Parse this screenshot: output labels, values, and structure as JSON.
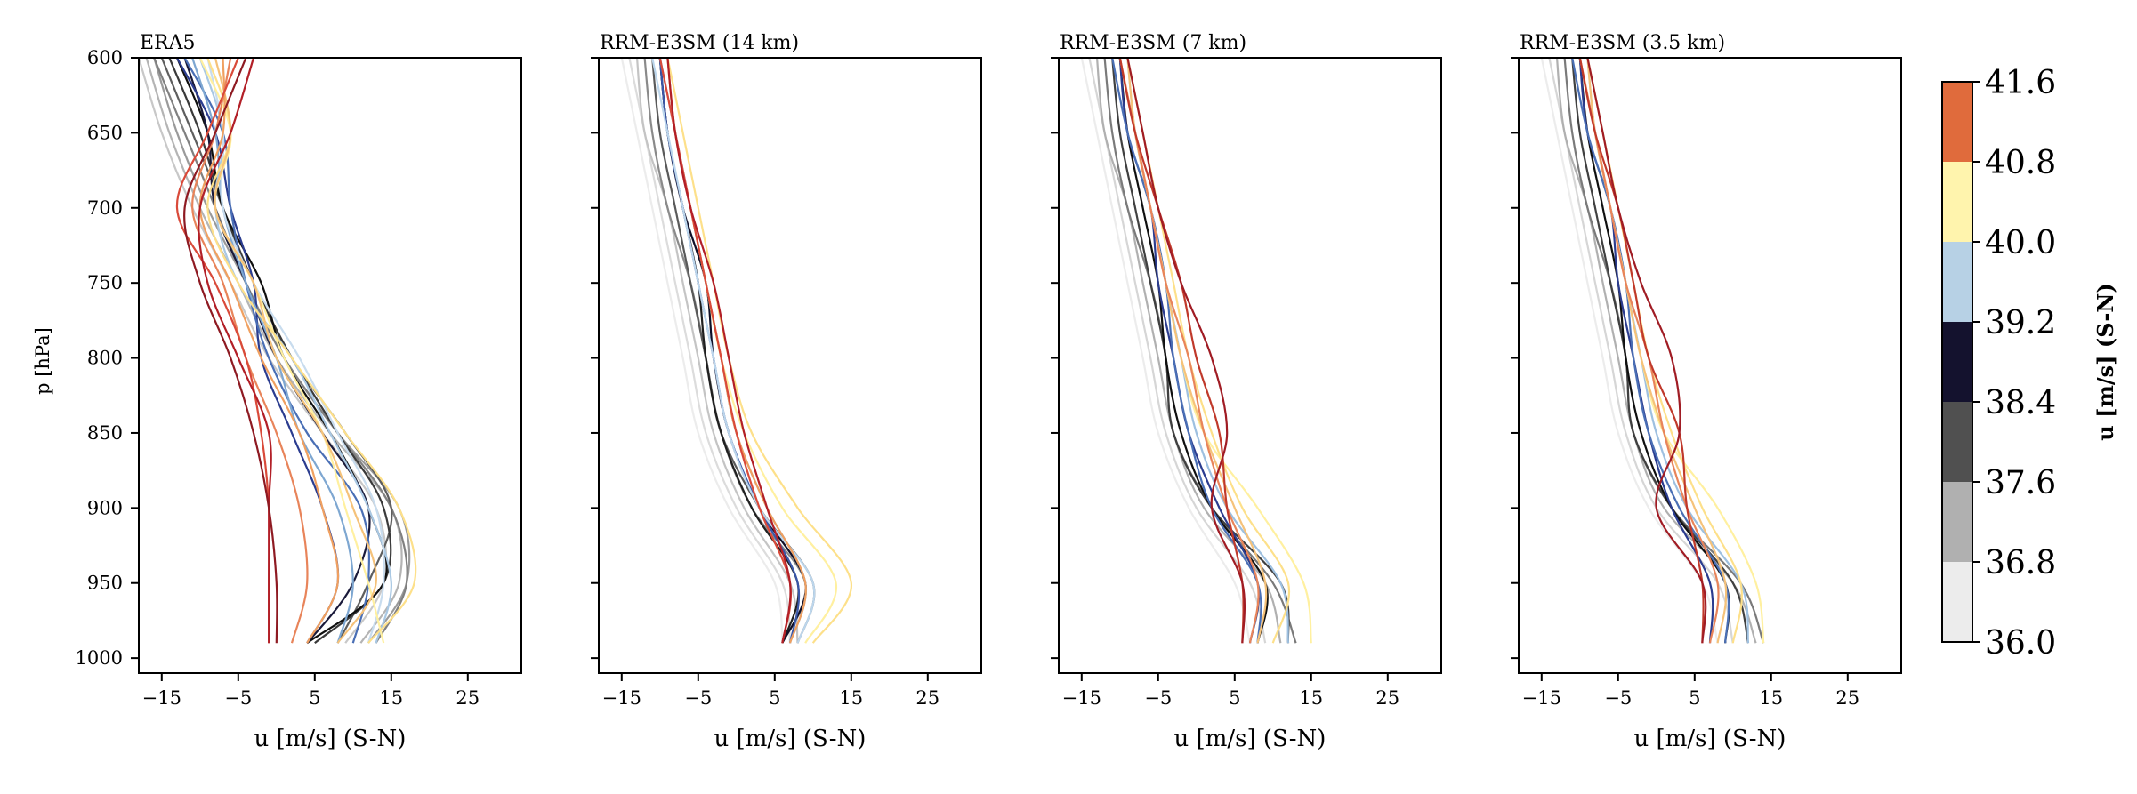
{
  "chart_data": [
    {
      "type": "line",
      "title": "ERA5",
      "xlabel": "u [m/s] (S-N)",
      "ylabel": "p [hPa]",
      "xlim": [
        -18,
        32
      ],
      "ylim": [
        1010,
        600
      ],
      "xticks": [
        -15,
        -5,
        5,
        15,
        25
      ],
      "yticks": [
        600,
        650,
        700,
        750,
        800,
        850,
        900,
        950,
        1000
      ],
      "y_levels": [
        600,
        650,
        700,
        750,
        800,
        850,
        900,
        950,
        990
      ],
      "series": [
        {
          "color": "#c8c8c8",
          "values": [
            -18,
            -15,
            -11,
            -6,
            -1,
            6,
            13,
            14,
            9
          ]
        },
        {
          "color": "#b4b4b4",
          "values": [
            -17,
            -14,
            -10,
            -5,
            0,
            7,
            15,
            16,
            11
          ]
        },
        {
          "color": "#9a9a9a",
          "values": [
            -16,
            -13,
            -9,
            -4,
            1,
            8,
            16,
            17,
            12
          ]
        },
        {
          "color": "#808080",
          "values": [
            -16,
            -12,
            -8,
            -4,
            1,
            8,
            15,
            17,
            13
          ]
        },
        {
          "color": "#5e5e5e",
          "values": [
            -15,
            -11,
            -7,
            -3,
            2,
            9,
            15,
            12,
            8
          ]
        },
        {
          "color": "#3a3a3a",
          "values": [
            -14,
            -10,
            -7,
            -3,
            2,
            8,
            14,
            14,
            5
          ]
        },
        {
          "color": "#101010",
          "values": [
            -13,
            -9,
            -7,
            -2,
            1,
            7,
            12,
            14,
            4
          ]
        },
        {
          "color": "#1a1a3a",
          "values": [
            -12,
            -9,
            -8,
            -4,
            0,
            6,
            12,
            10,
            4
          ]
        },
        {
          "color": "#2b3c8f",
          "values": [
            -13,
            -8,
            -6,
            -3,
            -2,
            2,
            6,
            8,
            4
          ]
        },
        {
          "color": "#4a6fb5",
          "values": [
            -12,
            -7,
            -6,
            -4,
            -1,
            4,
            11,
            12,
            10
          ]
        },
        {
          "color": "#7ea7d1",
          "values": [
            -11,
            -8,
            -7,
            -4,
            0,
            3,
            8,
            10,
            8
          ]
        },
        {
          "color": "#a9c8e3",
          "values": [
            -10,
            -7,
            -8,
            -5,
            2,
            7,
            12,
            15,
            13
          ]
        },
        {
          "color": "#c8dcee",
          "values": [
            -9,
            -7,
            -7,
            -3,
            3,
            8,
            13,
            14,
            12
          ]
        },
        {
          "color": "#fff0a0",
          "values": [
            -10,
            -6,
            -8,
            -3,
            1,
            6,
            9,
            12,
            14
          ]
        },
        {
          "color": "#fde08a",
          "values": [
            -9,
            -6,
            -9,
            -5,
            2,
            9,
            16,
            18,
            12
          ]
        },
        {
          "color": "#f5c27a",
          "values": [
            -8,
            -6,
            -8,
            -3,
            0,
            6,
            10,
            13,
            8
          ]
        },
        {
          "color": "#f0a060",
          "values": [
            -7,
            -7,
            -10,
            -6,
            -2,
            3,
            6,
            8,
            4
          ]
        },
        {
          "color": "#e8845a",
          "values": [
            -6,
            -8,
            -11,
            -7,
            -4,
            0,
            3,
            4,
            2
          ]
        },
        {
          "color": "#d94a3a",
          "values": [
            -5,
            -9,
            -13,
            -8,
            -4,
            -2,
            -1,
            -1,
            -1
          ]
        },
        {
          "color": "#b21f27",
          "values": [
            -3,
            -6,
            -10,
            -9,
            -5,
            -1,
            -1,
            -1,
            -1
          ]
        },
        {
          "color": "#8e1a22",
          "values": [
            -4,
            -8,
            -12,
            -10,
            -6,
            -3,
            -1,
            0,
            0
          ]
        }
      ]
    },
    {
      "type": "line",
      "title": "RRM-E3SM (14 km)",
      "xlabel": "u [m/s] (S-N)",
      "xlim": [
        -18,
        32
      ],
      "ylim": [
        1010,
        600
      ],
      "xticks": [
        -15,
        -5,
        5,
        15,
        25
      ],
      "yticks": [
        600,
        650,
        700,
        750,
        800,
        850,
        900,
        950,
        1000
      ],
      "y_levels": [
        600,
        650,
        700,
        750,
        800,
        850,
        900,
        950,
        990
      ],
      "series": [
        {
          "color": "#ececec",
          "values": [
            -15,
            -13,
            -11,
            -9,
            -7,
            -5,
            -1,
            5,
            6
          ]
        },
        {
          "color": "#dcdcdc",
          "values": [
            -14,
            -12,
            -10,
            -8,
            -6,
            -4,
            0,
            6,
            7
          ]
        },
        {
          "color": "#c4c4c4",
          "values": [
            -13,
            -12,
            -9,
            -7,
            -5,
            -3,
            1,
            7,
            8
          ]
        },
        {
          "color": "#8a8a8a",
          "values": [
            -12,
            -11,
            -9,
            -6,
            -4,
            -2,
            2,
            9,
            6
          ]
        },
        {
          "color": "#5a5a5a",
          "values": [
            -11,
            -10,
            -8,
            -6,
            -4,
            -2,
            3,
            10,
            8
          ]
        },
        {
          "color": "#202020",
          "values": [
            -10,
            -9,
            -7,
            -5,
            -4,
            -2,
            2,
            8,
            6
          ]
        },
        {
          "color": "#101028",
          "values": [
            -10,
            -9,
            -7,
            -4,
            -3,
            -1,
            3,
            9,
            6
          ]
        },
        {
          "color": "#3a57a8",
          "values": [
            -10,
            -9,
            -7,
            -5,
            -3,
            -1,
            3,
            8,
            7
          ]
        },
        {
          "color": "#7ea7d1",
          "values": [
            -10,
            -8,
            -6,
            -4,
            -2,
            0,
            4,
            9,
            7
          ]
        },
        {
          "color": "#bcd6ec",
          "values": [
            -11,
            -9,
            -7,
            -5,
            -3,
            -1,
            3,
            10,
            8
          ]
        },
        {
          "color": "#fff0a0",
          "values": [
            -9,
            -8,
            -6,
            -4,
            -2,
            1,
            6,
            13,
            9
          ]
        },
        {
          "color": "#fde08a",
          "values": [
            -9,
            -7,
            -5,
            -3,
            -1,
            2,
            8,
            15,
            10
          ]
        },
        {
          "color": "#f0a060",
          "values": [
            -9,
            -8,
            -6,
            -4,
            -2,
            0,
            4,
            9,
            7
          ]
        },
        {
          "color": "#d94a3a",
          "values": [
            -10,
            -8,
            -6,
            -4,
            -2,
            0,
            3,
            7,
            6
          ]
        },
        {
          "color": "#b21f27",
          "values": [
            -9,
            -8,
            -6,
            -3,
            -1,
            1,
            4,
            7,
            6
          ]
        }
      ]
    },
    {
      "type": "line",
      "title": "RRM-E3SM (7 km)",
      "xlabel": "u [m/s] (S-N)",
      "xlim": [
        -18,
        32
      ],
      "ylim": [
        1010,
        600
      ],
      "xticks": [
        -15,
        -5,
        5,
        15,
        25
      ],
      "yticks": [
        600,
        650,
        700,
        750,
        800,
        850,
        900,
        950,
        1000
      ],
      "y_levels": [
        600,
        650,
        700,
        750,
        800,
        850,
        900,
        950,
        990
      ],
      "series": [
        {
          "color": "#ececec",
          "values": [
            -15,
            -13,
            -11,
            -9,
            -7,
            -5,
            -1,
            5,
            7
          ]
        },
        {
          "color": "#d6d6d6",
          "values": [
            -14,
            -12,
            -10,
            -8,
            -6,
            -4,
            0,
            7,
            9
          ]
        },
        {
          "color": "#b0b0b0",
          "values": [
            -13,
            -12,
            -9,
            -7,
            -5,
            -3,
            1,
            9,
            11
          ]
        },
        {
          "color": "#7a7a7a",
          "values": [
            -12,
            -11,
            -9,
            -6,
            -4,
            -3,
            2,
            10,
            13
          ]
        },
        {
          "color": "#404040",
          "values": [
            -11,
            -10,
            -8,
            -6,
            -4,
            -3,
            2,
            11,
            12
          ]
        },
        {
          "color": "#101010",
          "values": [
            -10,
            -9,
            -7,
            -5,
            -4,
            -2,
            2,
            9,
            8
          ]
        },
        {
          "color": "#2b3c8f",
          "values": [
            -10,
            -9,
            -6,
            -5,
            -3,
            -1,
            3,
            8,
            7
          ]
        },
        {
          "color": "#4a6fb5",
          "values": [
            -11,
            -9,
            -6,
            -4,
            -3,
            -1,
            2,
            8,
            8
          ]
        },
        {
          "color": "#9ec0e0",
          "values": [
            -9,
            -8,
            -6,
            -4,
            -2,
            0,
            4,
            11,
            12
          ]
        },
        {
          "color": "#fff0a0",
          "values": [
            -10,
            -8,
            -6,
            -4,
            -2,
            1,
            8,
            14,
            15
          ]
        },
        {
          "color": "#fde08a",
          "values": [
            -9,
            -7,
            -5,
            -3,
            -1,
            2,
            6,
            12,
            10
          ]
        },
        {
          "color": "#f5c27a",
          "values": [
            -9,
            -8,
            -6,
            -4,
            -2,
            1,
            5,
            9,
            8
          ]
        },
        {
          "color": "#e8845a",
          "values": [
            -10,
            -8,
            -6,
            -4,
            -1,
            1,
            4,
            8,
            7
          ]
        },
        {
          "color": "#c0392b",
          "values": [
            -10,
            -8,
            -5,
            -2,
            0,
            3,
            4,
            6,
            6
          ]
        },
        {
          "color": "#a01c24",
          "values": [
            -9,
            -7,
            -5,
            -2,
            2,
            4,
            2,
            6,
            6
          ]
        }
      ]
    },
    {
      "type": "line",
      "title": "RRM-E3SM (3.5 km)",
      "xlabel": "u [m/s] (S-N)",
      "xlim": [
        -18,
        32
      ],
      "ylim": [
        1010,
        600
      ],
      "xticks": [
        -15,
        -5,
        5,
        15,
        25
      ],
      "yticks": [
        600,
        650,
        700,
        750,
        800,
        850,
        900,
        950,
        1000
      ],
      "y_levels": [
        600,
        650,
        700,
        750,
        800,
        850,
        900,
        950,
        990
      ],
      "series": [
        {
          "color": "#ececec",
          "values": [
            -15,
            -13,
            -11,
            -9,
            -7,
            -5,
            -1,
            6,
            8
          ]
        },
        {
          "color": "#d6d6d6",
          "values": [
            -14,
            -12,
            -10,
            -8,
            -6,
            -4,
            0,
            8,
            10
          ]
        },
        {
          "color": "#b0b0b0",
          "values": [
            -13,
            -12,
            -9,
            -7,
            -5,
            -3,
            1,
            10,
            13
          ]
        },
        {
          "color": "#7a7a7a",
          "values": [
            -12,
            -11,
            -9,
            -6,
            -4,
            -3,
            2,
            11,
            14
          ]
        },
        {
          "color": "#404040",
          "values": [
            -11,
            -10,
            -8,
            -6,
            -4,
            -3,
            2,
            10,
            12
          ]
        },
        {
          "color": "#101010",
          "values": [
            -10,
            -9,
            -7,
            -5,
            -4,
            -2,
            2,
            9,
            9
          ]
        },
        {
          "color": "#2b3c8f",
          "values": [
            -10,
            -9,
            -6,
            -5,
            -3,
            -1,
            2,
            7,
            7
          ]
        },
        {
          "color": "#4a6fb5",
          "values": [
            -11,
            -9,
            -6,
            -4,
            -3,
            -1,
            3,
            9,
            9
          ]
        },
        {
          "color": "#9ec0e0",
          "values": [
            -9,
            -8,
            -6,
            -4,
            -2,
            0,
            4,
            11,
            12
          ]
        },
        {
          "color": "#fff0a0",
          "values": [
            -10,
            -8,
            -6,
            -4,
            -2,
            1,
            8,
            13,
            14
          ]
        },
        {
          "color": "#fde08a",
          "values": [
            -9,
            -7,
            -5,
            -3,
            -1,
            2,
            6,
            11,
            10
          ]
        },
        {
          "color": "#f5c27a",
          "values": [
            -9,
            -8,
            -6,
            -4,
            -2,
            1,
            5,
            9,
            8
          ]
        },
        {
          "color": "#e8845a",
          "values": [
            -10,
            -8,
            -6,
            -4,
            -1,
            1,
            4,
            8,
            7
          ]
        },
        {
          "color": "#c0392b",
          "values": [
            -10,
            -8,
            -5,
            -3,
            -1,
            3,
            4,
            6,
            6
          ]
        },
        {
          "color": "#a01c24",
          "values": [
            -9,
            -7,
            -5,
            -2,
            2,
            3,
            0,
            6,
            6
          ]
        }
      ]
    }
  ],
  "colorbar": {
    "label": "u [m/s] (S-N)",
    "ticks": [
      "41.6",
      "40.8",
      "40.0",
      "39.2",
      "38.4",
      "37.6",
      "36.8",
      "36.0"
    ],
    "colors": [
      "#e06b3c",
      "#fff4ad",
      "#b7d1e5",
      "#14122e",
      "#505050",
      "#b0b0b0",
      "#ececec"
    ]
  }
}
